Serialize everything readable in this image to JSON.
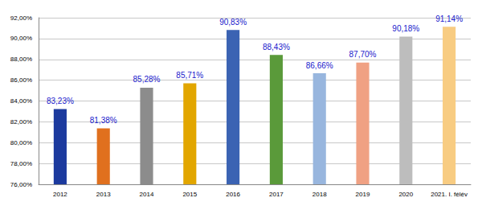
{
  "chart_data": {
    "type": "bar",
    "categories": [
      "2012",
      "2013",
      "2014",
      "2015",
      "2016",
      "2017",
      "2018",
      "2019",
      "2020",
      "2021. I. félév"
    ],
    "values": [
      83.23,
      81.38,
      85.28,
      85.71,
      90.83,
      88.43,
      86.66,
      87.7,
      90.18,
      91.14
    ],
    "value_labels": [
      "83,23%",
      "81,38%",
      "85,28%",
      "85,71%",
      "90,83%",
      "88,43%",
      "86,66%",
      "87,70%",
      "90,18%",
      "91,14%"
    ],
    "colors": [
      "#1c3a9e",
      "#e0701e",
      "#8c8c8c",
      "#e2a600",
      "#3b63b3",
      "#5a9a3a",
      "#98b6de",
      "#f0a183",
      "#bdbdbd",
      "#f8cc82"
    ],
    "ylim": [
      76,
      92
    ],
    "yticks": [
      {
        "value": 76,
        "label": "76,00%"
      },
      {
        "value": 78,
        "label": "78,00%"
      },
      {
        "value": 80,
        "label": "80,00%"
      },
      {
        "value": 82,
        "label": "82,00%"
      },
      {
        "value": 84,
        "label": "84,00%"
      },
      {
        "value": 86,
        "label": "86,00%"
      },
      {
        "value": 88,
        "label": "88,00%"
      },
      {
        "value": 90,
        "label": "90,00%"
      },
      {
        "value": 92,
        "label": "92,00%"
      }
    ],
    "grid": true,
    "data_labels": true
  }
}
